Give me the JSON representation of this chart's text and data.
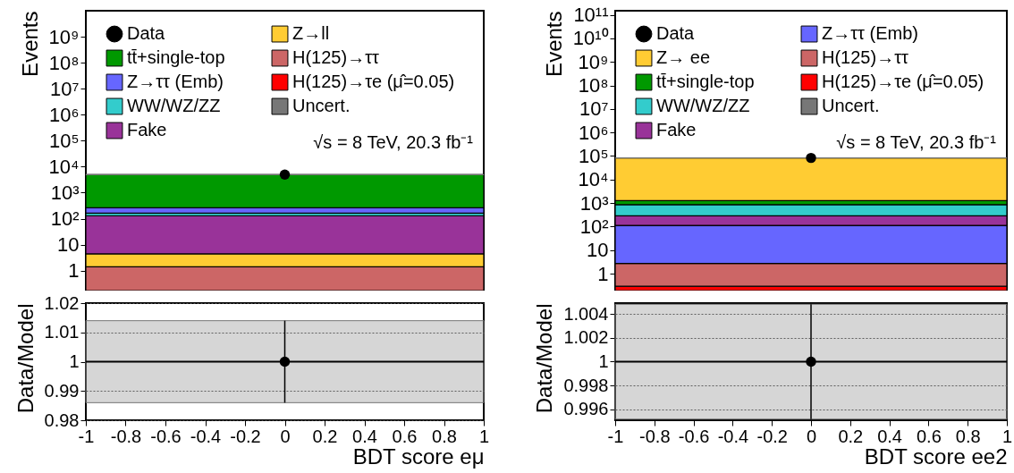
{
  "chart_data": [
    {
      "type": "bar",
      "ylabel": "Events",
      "categories": [
        null
      ],
      "stacked": true,
      "log": "y",
      "legend": "top",
      "tick_labels": "y",
      "ylim": [
        0.17,
        10000000000
      ],
      "yticks": [
        1,
        10,
        {
          "value": 100,
          "label": "10²"
        },
        {
          "value": 1000,
          "label": "10³"
        },
        {
          "value": 10000,
          "label": "10⁴"
        },
        {
          "value": 100000,
          "label": "10⁵"
        },
        {
          "value": 1000000,
          "label": "10⁶"
        },
        {
          "value": 10000000,
          "label": "10⁷"
        },
        {
          "value": 100000000,
          "label": "10⁸"
        },
        {
          "value": 1000000000,
          "label": "10⁹"
        }
      ],
      "series": [
        {
          "name": "H(125)→τe (μ̂=0.05)",
          "color": "#ff0000",
          "values": [
            null
          ]
        },
        {
          "name": "H(125)→ττ",
          "color": "#cc6666",
          "values": [
            1.4
          ]
        },
        {
          "name": "Z→ll",
          "color": "#ffcc33",
          "values": [
            3.0
          ]
        },
        {
          "name": "Fake",
          "color": "#993399",
          "values": [
            125
          ]
        },
        {
          "name": "WW/WZ/ZZ",
          "color": "#33cccc",
          "values": [
            32
          ]
        },
        {
          "name": "Z→ττ (Emb)",
          "color": "#6666ff",
          "values": [
            99
          ]
        },
        {
          "name": "tt̄+single-top",
          "color": "#009900",
          "values": [
            4690
          ]
        },
        {
          "name": "Data",
          "type": "scatter",
          "color": "#000000",
          "values": [
            4950
          ],
          "marker": "circle"
        }
      ],
      "bands": [
        {
          "axis": "y",
          "from": 4880,
          "to": 5020,
          "label": "Uncert.",
          "color": "#777777"
        }
      ],
      "annotations": [
        "√s = 8 TeV, 20.3 fb⁻¹"
      ]
    },
    {
      "type": "scatter",
      "xlabel": "BDT score eμ",
      "ylabel": "Data/Model",
      "grid": "y",
      "marker": "circle",
      "xlim": [
        -1,
        1
      ],
      "xticks": [
        -1,
        -0.8,
        -0.6,
        -0.4,
        -0.2,
        0,
        0.2,
        0.4,
        0.6,
        0.8,
        1
      ],
      "ylim": [
        0.98,
        1.02
      ],
      "yticks": [
        0.98,
        0.99,
        1,
        1.01,
        1.02
      ],
      "series": [
        {
          "color": "#000000",
          "x": [
            0
          ],
          "values": [
            1
          ],
          "errors": [
            0.014
          ]
        }
      ],
      "ref_lines": [
        {
          "axis": "y",
          "value": 1,
          "color": "#000000"
        }
      ],
      "bands": [
        {
          "axis": "y",
          "from": 0.986,
          "to": 1.014,
          "color": "#777777"
        }
      ]
    },
    {
      "type": "bar",
      "ylabel": "Events",
      "categories": [
        null
      ],
      "stacked": true,
      "log": "y",
      "legend": "top",
      "tick_labels": "y",
      "ylim": [
        0.19,
        150000000000
      ],
      "yticks": [
        1,
        10,
        {
          "value": 100,
          "label": "10²"
        },
        {
          "value": 1000,
          "label": "10³"
        },
        {
          "value": 10000,
          "label": "10⁴"
        },
        {
          "value": 100000,
          "label": "10⁵"
        },
        {
          "value": 1000000,
          "label": "10⁶"
        },
        {
          "value": 10000000,
          "label": "10⁷"
        },
        {
          "value": 100000000,
          "label": "10⁸"
        },
        {
          "value": 1000000000,
          "label": "10⁹"
        },
        {
          "value": 10000000000,
          "label": "10¹⁰"
        },
        {
          "value": 100000000000,
          "label": "10¹¹"
        }
      ],
      "series": [
        {
          "name": "H(125)→τe (μ̂=0.05)",
          "color": "#ff0000",
          "values": [
            0.29
          ]
        },
        {
          "name": "H(125)→ττ",
          "color": "#cc6666",
          "values": [
            2.4
          ]
        },
        {
          "name": "Z→ττ (Emb)",
          "color": "#6666ff",
          "values": [
            110
          ]
        },
        {
          "name": "Fake",
          "color": "#993399",
          "values": [
            175
          ]
        },
        {
          "name": "WW/WZ/ZZ",
          "color": "#33cccc",
          "values": [
            567
          ]
        },
        {
          "name": "tt̄+single-top",
          "color": "#009900",
          "values": [
            425
          ]
        },
        {
          "name": "Z→ ee",
          "color": "#ffcc33",
          "values": [
            81700
          ]
        },
        {
          "name": "Data",
          "type": "scatter",
          "color": "#000000",
          "values": [
            83000
          ],
          "marker": "circle"
        }
      ],
      "bands": [
        {
          "axis": "y",
          "from": 82600,
          "to": 83400,
          "label": "Uncert.",
          "color": "#777777"
        }
      ],
      "annotations": [
        "√s = 8 TeV, 20.3 fb⁻¹"
      ]
    },
    {
      "type": "scatter",
      "xlabel": "BDT score ee2",
      "ylabel": "Data/Model",
      "grid": "y",
      "marker": "circle",
      "xlim": [
        -1,
        1
      ],
      "xticks": [
        -1,
        -0.8,
        -0.6,
        -0.4,
        -0.2,
        0,
        0.2,
        0.4,
        0.6,
        0.8,
        1
      ],
      "ylim": [
        0.9951,
        1.0049
      ],
      "yticks": [
        0.996,
        0.998,
        1,
        1.002,
        1.004
      ],
      "series": [
        {
          "color": "#000000",
          "x": [
            0
          ],
          "values": [
            1
          ],
          "errors": [
            0.0048
          ]
        }
      ],
      "ref_lines": [
        {
          "axis": "y",
          "value": 1,
          "color": "#000000"
        }
      ],
      "bands": [
        {
          "axis": "y",
          "from": 0.9952,
          "to": 1.0048,
          "color": "#777777"
        }
      ]
    }
  ]
}
